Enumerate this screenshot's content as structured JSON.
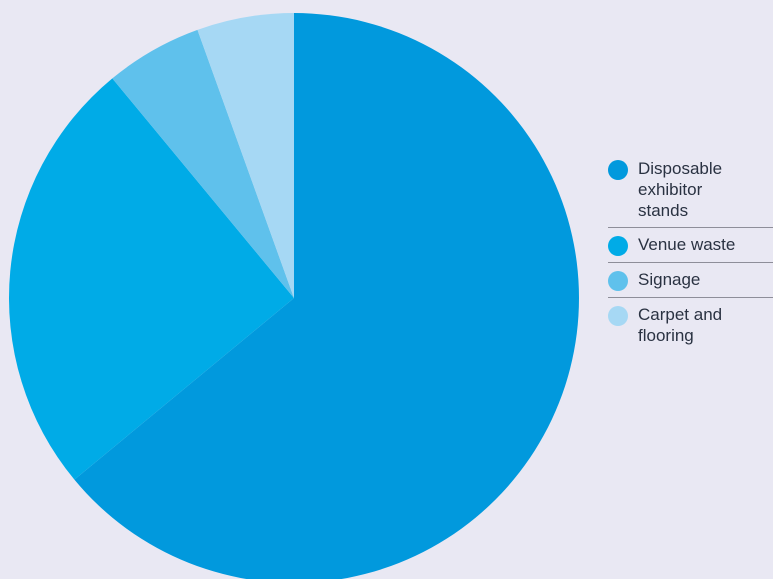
{
  "chart_data": {
    "type": "pie",
    "slices": [
      {
        "label": "Disposable exhibitor stands",
        "value": 64,
        "color": "#0199dd"
      },
      {
        "label": "Venue waste",
        "value": 25,
        "color": "#00abe7"
      },
      {
        "label": "Signage",
        "value": 5.5,
        "color": "#5fc1ec"
      },
      {
        "label": "Carpet and flooring",
        "value": 5.5,
        "color": "#a6d8f4"
      }
    ],
    "start_angle_deg": 0,
    "direction": "clockwise",
    "legend_position": "right"
  }
}
